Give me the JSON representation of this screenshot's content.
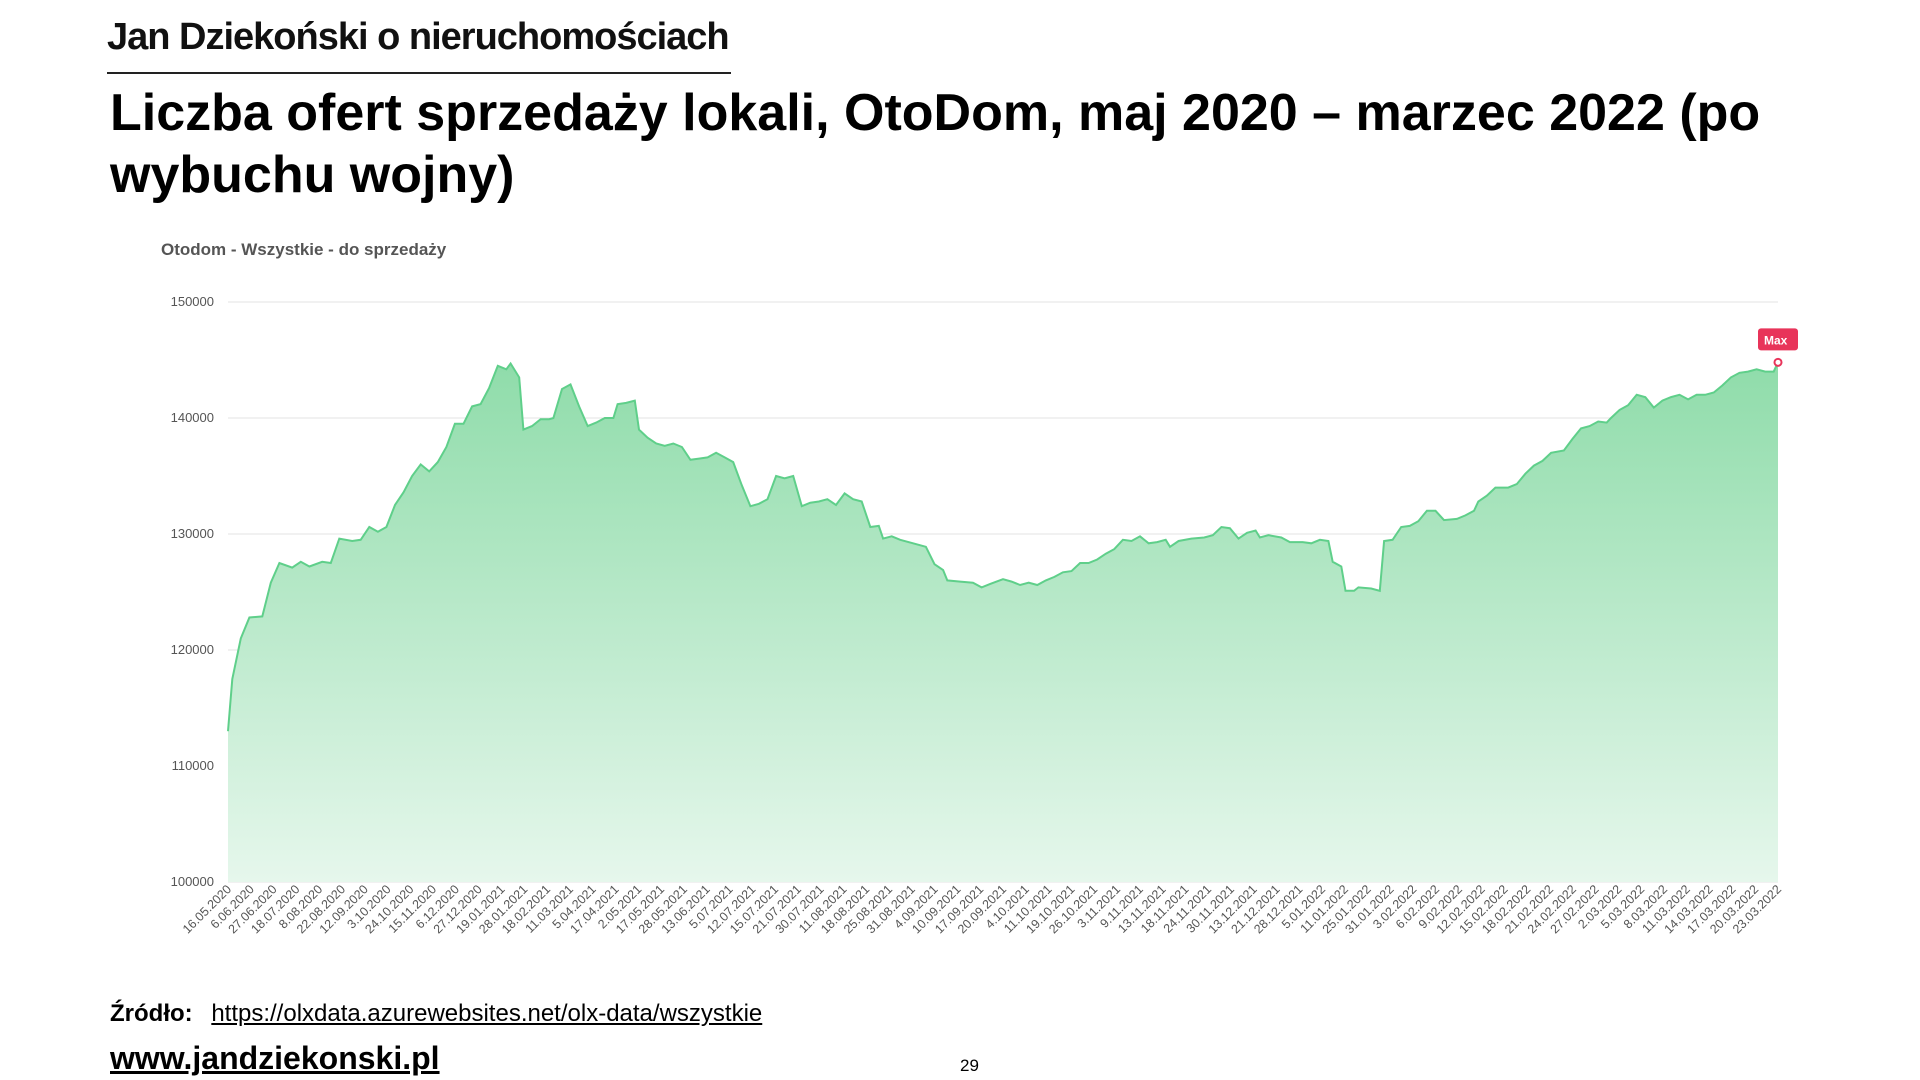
{
  "brand": "Jan Dziekoński o nieruchomościach",
  "slide_title": "Liczba ofert sprzedaży lokali, OtoDom, maj 2020 – marzec 2022 (po wybuchu wojny)",
  "source": {
    "label": "Źródło:",
    "url": "https://olxdata.azurewebsites.net/olx-data/wszystkie"
  },
  "website": "www.jandziekonski.pl",
  "page_number": "29",
  "colors": {
    "line": "#5fcf8a",
    "fill_top": "#8fdcaa",
    "fill_bottom": "#e6f7ec",
    "grid": "#e3e3e3",
    "max_badge": "#e8345a"
  },
  "chart_data": {
    "type": "area",
    "title": "Otodom - Wszystkie - do sprzedaży",
    "xlabel": "",
    "ylabel": "",
    "ylim": [
      100000,
      150000
    ],
    "yticks": [
      100000,
      110000,
      120000,
      130000,
      140000,
      150000
    ],
    "grid": true,
    "max_marker_label": "Max",
    "x_tick_labels": [
      "16.05.2020",
      "6.06.2020",
      "27.06.2020",
      "18.07.2020",
      "8.08.2020",
      "22.08.2020",
      "12.09.2020",
      "3.10.2020",
      "24.10.2020",
      "15.11.2020",
      "6.12.2020",
      "27.12.2020",
      "19.01.2021",
      "28.01.2021",
      "18.02.2021",
      "11.03.2021",
      "5.04.2021",
      "17.04.2021",
      "2.05.2021",
      "17.05.2021",
      "28.05.2021",
      "13.06.2021",
      "5.07.2021",
      "12.07.2021",
      "15.07.2021",
      "21.07.2021",
      "30.07.2021",
      "11.08.2021",
      "18.08.2021",
      "25.08.2021",
      "31.08.2021",
      "4.09.2021",
      "10.09.2021",
      "17.09.2021",
      "20.09.2021",
      "4.10.2021",
      "11.10.2021",
      "19.10.2021",
      "26.10.2021",
      "3.11.2021",
      "9.11.2021",
      "13.11.2021",
      "18.11.2021",
      "24.11.2021",
      "30.11.2021",
      "13.12.2021",
      "21.12.2021",
      "28.12.2021",
      "5.01.2022",
      "11.01.2022",
      "25.01.2022",
      "31.01.2022",
      "3.02.2022",
      "6.02.2022",
      "9.02.2022",
      "12.02.2022",
      "15.02.2022",
      "18.02.2022",
      "21.02.2022",
      "24.02.2022",
      "27.02.2022",
      "2.03.2022",
      "5.03.2022",
      "8.03.2022",
      "11.03.2022",
      "14.03.2022",
      "17.03.2022",
      "20.03.2022",
      "23.03.2022"
    ],
    "series": [
      {
        "values": [
          [
            0,
            113000
          ],
          [
            1,
            117500
          ],
          [
            3,
            121000
          ],
          [
            5,
            122800
          ],
          [
            8,
            122900
          ],
          [
            10,
            125800
          ],
          [
            12,
            127500
          ],
          [
            15,
            127100
          ],
          [
            17,
            127600
          ],
          [
            19,
            127200
          ],
          [
            22,
            127600
          ],
          [
            24,
            127500
          ],
          [
            26,
            129600
          ],
          [
            29,
            129400
          ],
          [
            31,
            129500
          ],
          [
            33,
            130600
          ],
          [
            35,
            130200
          ],
          [
            37,
            130600
          ],
          [
            39,
            132500
          ],
          [
            41,
            133600
          ],
          [
            43,
            135000
          ],
          [
            45,
            136000
          ],
          [
            47,
            135400
          ],
          [
            49,
            136200
          ],
          [
            51,
            137500
          ],
          [
            53,
            139500
          ],
          [
            55,
            139500
          ],
          [
            57,
            141000
          ],
          [
            59,
            141200
          ],
          [
            61,
            142600
          ],
          [
            63,
            144500
          ],
          [
            65,
            144200
          ],
          [
            66,
            144700
          ],
          [
            68,
            143500
          ],
          [
            69,
            139000
          ],
          [
            71,
            139300
          ],
          [
            73,
            139900
          ],
          [
            75,
            139900
          ],
          [
            76,
            140000
          ],
          [
            78,
            142500
          ],
          [
            80,
            142900
          ],
          [
            82,
            141000
          ],
          [
            84,
            139300
          ],
          [
            86,
            139600
          ],
          [
            88,
            140000
          ],
          [
            90,
            140000
          ],
          [
            91,
            141200
          ],
          [
            93,
            141300
          ],
          [
            95,
            141500
          ],
          [
            96,
            139000
          ],
          [
            98,
            138300
          ],
          [
            100,
            137800
          ],
          [
            102,
            137600
          ],
          [
            104,
            137800
          ],
          [
            106,
            137500
          ],
          [
            108,
            136400
          ],
          [
            110,
            136500
          ],
          [
            112,
            136600
          ],
          [
            114,
            137000
          ],
          [
            116,
            136600
          ],
          [
            118,
            136200
          ],
          [
            120,
            134200
          ],
          [
            122,
            132400
          ],
          [
            124,
            132600
          ],
          [
            126,
            133000
          ],
          [
            128,
            135000
          ],
          [
            130,
            134800
          ],
          [
            132,
            135000
          ],
          [
            134,
            132400
          ],
          [
            136,
            132700
          ],
          [
            138,
            132800
          ],
          [
            140,
            133000
          ],
          [
            142,
            132500
          ],
          [
            144,
            133500
          ],
          [
            146,
            133000
          ],
          [
            148,
            132800
          ],
          [
            150,
            130600
          ],
          [
            152,
            130700
          ],
          [
            153,
            129600
          ],
          [
            155,
            129800
          ],
          [
            157,
            129500
          ],
          [
            160,
            129200
          ],
          [
            163,
            128900
          ],
          [
            165,
            127400
          ],
          [
            167,
            126900
          ],
          [
            168,
            126000
          ],
          [
            171,
            125900
          ],
          [
            174,
            125800
          ],
          [
            176,
            125400
          ],
          [
            178,
            125700
          ],
          [
            181,
            126100
          ],
          [
            183,
            125900
          ],
          [
            185,
            125600
          ],
          [
            187,
            125800
          ],
          [
            189,
            125600
          ],
          [
            191,
            126000
          ],
          [
            193,
            126300
          ],
          [
            195,
            126700
          ],
          [
            197,
            126800
          ],
          [
            199,
            127500
          ],
          [
            201,
            127500
          ],
          [
            203,
            127800
          ],
          [
            205,
            128300
          ],
          [
            207,
            128700
          ],
          [
            209,
            129500
          ],
          [
            211,
            129400
          ],
          [
            213,
            129800
          ],
          [
            215,
            129200
          ],
          [
            217,
            129300
          ],
          [
            219,
            129500
          ],
          [
            220,
            128900
          ],
          [
            222,
            129400
          ],
          [
            225,
            129600
          ],
          [
            228,
            129700
          ],
          [
            230,
            129900
          ],
          [
            232,
            130600
          ],
          [
            234,
            130500
          ],
          [
            236,
            129600
          ],
          [
            238,
            130100
          ],
          [
            240,
            130300
          ],
          [
            241,
            129700
          ],
          [
            243,
            129900
          ],
          [
            246,
            129700
          ],
          [
            248,
            129300
          ],
          [
            251,
            129300
          ],
          [
            253,
            129200
          ],
          [
            255,
            129500
          ],
          [
            257,
            129400
          ],
          [
            258,
            127600
          ],
          [
            260,
            127200
          ],
          [
            261,
            125100
          ],
          [
            263,
            125100
          ],
          [
            264,
            125400
          ],
          [
            267,
            125300
          ],
          [
            269,
            125100
          ],
          [
            270,
            129400
          ],
          [
            272,
            129500
          ],
          [
            274,
            130600
          ],
          [
            276,
            130700
          ],
          [
            278,
            131100
          ],
          [
            280,
            132000
          ],
          [
            282,
            132000
          ],
          [
            284,
            131200
          ],
          [
            287,
            131300
          ],
          [
            289,
            131600
          ],
          [
            291,
            132000
          ],
          [
            292,
            132800
          ],
          [
            294,
            133300
          ],
          [
            296,
            134000
          ],
          [
            299,
            134000
          ],
          [
            301,
            134300
          ],
          [
            303,
            135200
          ],
          [
            305,
            135900
          ],
          [
            307,
            136300
          ],
          [
            309,
            137000
          ],
          [
            312,
            137200
          ],
          [
            314,
            138200
          ],
          [
            316,
            139100
          ],
          [
            318,
            139300
          ],
          [
            320,
            139700
          ],
          [
            322,
            139600
          ],
          [
            323,
            140000
          ],
          [
            325,
            140700
          ],
          [
            327,
            141100
          ],
          [
            329,
            142000
          ],
          [
            331,
            141800
          ],
          [
            333,
            140900
          ],
          [
            335,
            141500
          ],
          [
            337,
            141800
          ],
          [
            339,
            142000
          ],
          [
            341,
            141600
          ],
          [
            343,
            142000
          ],
          [
            345,
            142000
          ],
          [
            347,
            142200
          ],
          [
            349,
            142800
          ],
          [
            351,
            143500
          ],
          [
            353,
            143900
          ],
          [
            355,
            144000
          ],
          [
            357,
            144200
          ],
          [
            359,
            144000
          ],
          [
            361,
            144000
          ],
          [
            362,
            144800
          ]
        ]
      }
    ]
  }
}
